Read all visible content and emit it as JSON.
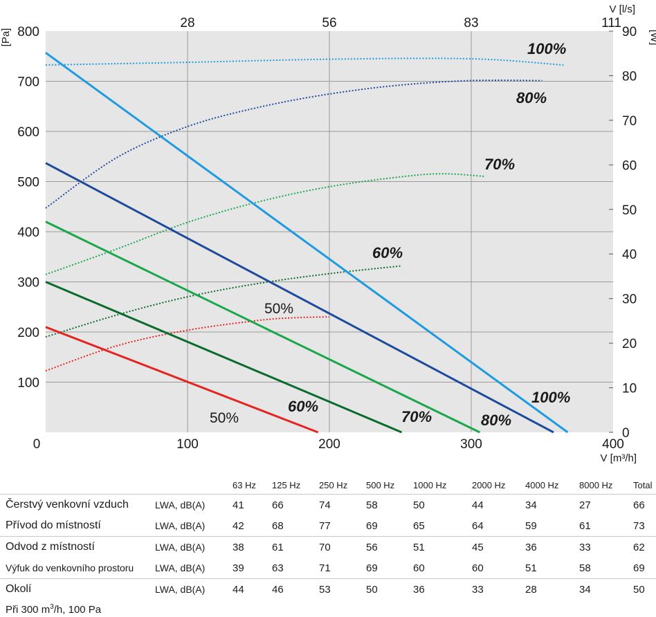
{
  "chart_data": {
    "type": "line",
    "title": "",
    "x_axis": {
      "label": "V [m³/h]",
      "range": [
        0,
        400
      ],
      "ticks": [
        "0",
        "100",
        "200",
        "300",
        "400"
      ]
    },
    "x_top_axis": {
      "label": "V [l/s]",
      "ticks": [
        "28",
        "56",
        "83",
        "111"
      ],
      "positions_m3h": [
        100,
        200,
        300,
        400
      ]
    },
    "y_left_axis": {
      "label": "[Pa]",
      "range": [
        0,
        800
      ],
      "ticks": [
        "100",
        "200",
        "300",
        "400",
        "500",
        "600",
        "700",
        "800"
      ]
    },
    "y_right_axis": {
      "label": "[W]",
      "range": [
        0,
        90
      ],
      "ticks": [
        "0",
        "10",
        "20",
        "30",
        "40",
        "50",
        "60",
        "70",
        "80",
        "90"
      ]
    },
    "grid": true,
    "pressure_series": [
      {
        "label": "50%",
        "color": "#e52521",
        "points": [
          [
            0,
            210
          ],
          [
            192,
            0
          ]
        ]
      },
      {
        "label": "60%",
        "color": "#0b6b2c",
        "points": [
          [
            0,
            300
          ],
          [
            251,
            0
          ]
        ]
      },
      {
        "label": "70%",
        "color": "#19a74a",
        "points": [
          [
            0,
            420
          ],
          [
            306,
            0
          ]
        ]
      },
      {
        "label": "80%",
        "color": "#1d4a9c",
        "points": [
          [
            0,
            537
          ],
          [
            358,
            0
          ]
        ]
      },
      {
        "label": "100%",
        "color": "#1e9be0",
        "points": [
          [
            0,
            757
          ],
          [
            368,
            0
          ]
        ]
      }
    ],
    "power_series": [
      {
        "label": "50%",
        "color": "#e52521",
        "points": [
          [
            0,
            13.8
          ],
          [
            50,
            19.4
          ],
          [
            100,
            22.9
          ],
          [
            150,
            25.1
          ],
          [
            175,
            25.7
          ],
          [
            200,
            25.9
          ]
        ]
      },
      {
        "label": "60%",
        "color": "#0b6b2c",
        "points": [
          [
            0,
            21.4
          ],
          [
            50,
            26.3
          ],
          [
            100,
            30.4
          ],
          [
            150,
            33.4
          ],
          [
            200,
            35.6
          ],
          [
            250,
            37.3
          ]
        ]
      },
      {
        "label": "70%",
        "color": "#19a74a",
        "points": [
          [
            0,
            35.4
          ],
          [
            50,
            41.1
          ],
          [
            100,
            47.1
          ],
          [
            150,
            51.7
          ],
          [
            200,
            55.1
          ],
          [
            250,
            57.3
          ],
          [
            280,
            58.0
          ],
          [
            310,
            57.4
          ]
        ]
      },
      {
        "label": "80%",
        "color": "#1d4a9c",
        "points": [
          [
            0,
            50.3
          ],
          [
            50,
            61.6
          ],
          [
            100,
            68.6
          ],
          [
            150,
            72.9
          ],
          [
            200,
            75.9
          ],
          [
            250,
            77.9
          ],
          [
            300,
            78.9
          ],
          [
            350,
            78.9
          ]
        ]
      },
      {
        "label": "100%",
        "color": "#1e9be0",
        "points": [
          [
            0,
            82.4
          ],
          [
            100,
            83.0
          ],
          [
            200,
            83.7
          ],
          [
            300,
            83.8
          ],
          [
            365,
            82.4
          ]
        ]
      }
    ],
    "annotations": [
      {
        "text": "100%",
        "style": "bold"
      },
      {
        "text": "80%",
        "style": "bold"
      },
      {
        "text": "70%",
        "style": "bold"
      },
      {
        "text": "60%",
        "style": "bold"
      },
      {
        "text": "50%",
        "style": "normal"
      },
      {
        "text": "100%",
        "style": "bold"
      },
      {
        "text": "80%",
        "style": "bold"
      },
      {
        "text": "70%",
        "style": "bold"
      },
      {
        "text": "60%",
        "style": "bold"
      },
      {
        "text": "50%",
        "style": "normal"
      }
    ]
  },
  "noise_table": {
    "headers": [
      "63 Hz",
      "125 Hz",
      "250 Hz",
      "500 Hz",
      "1000 Hz",
      "2000 Hz",
      "4000 Hz",
      "8000 Hz",
      "Total"
    ],
    "rows": [
      {
        "name": "Čerstvý venkovní vzduch",
        "measure": "LWA, dB(A)",
        "values": [
          "41",
          "66",
          "74",
          "58",
          "50",
          "44",
          "34",
          "27",
          "66"
        ]
      },
      {
        "name": "Přívod do místností",
        "measure": "LWA, dB(A)",
        "values": [
          "42",
          "68",
          "77",
          "69",
          "65",
          "64",
          "59",
          "61",
          "73"
        ]
      },
      {
        "name": "Odvod z místností",
        "measure": "LWA, dB(A)",
        "values": [
          "38",
          "61",
          "70",
          "56",
          "51",
          "45",
          "36",
          "33",
          "62"
        ]
      },
      {
        "name": "Výfuk do venkovního prostoru",
        "measure": "LWA, dB(A)",
        "values": [
          "39",
          "63",
          "71",
          "69",
          "60",
          "60",
          "51",
          "58",
          "69"
        ]
      },
      {
        "name": "Okolí",
        "measure": "LWA, dB(A)",
        "values": [
          "44",
          "46",
          "53",
          "50",
          "36",
          "33",
          "28",
          "34",
          "50"
        ]
      }
    ],
    "footnote_prefix": "Při 300 m",
    "footnote_sup": "3",
    "footnote_suffix": "/h, 100 Pa"
  },
  "colors": {
    "plot_background": "#e6e6e6",
    "grid": "#9a9a9a"
  }
}
